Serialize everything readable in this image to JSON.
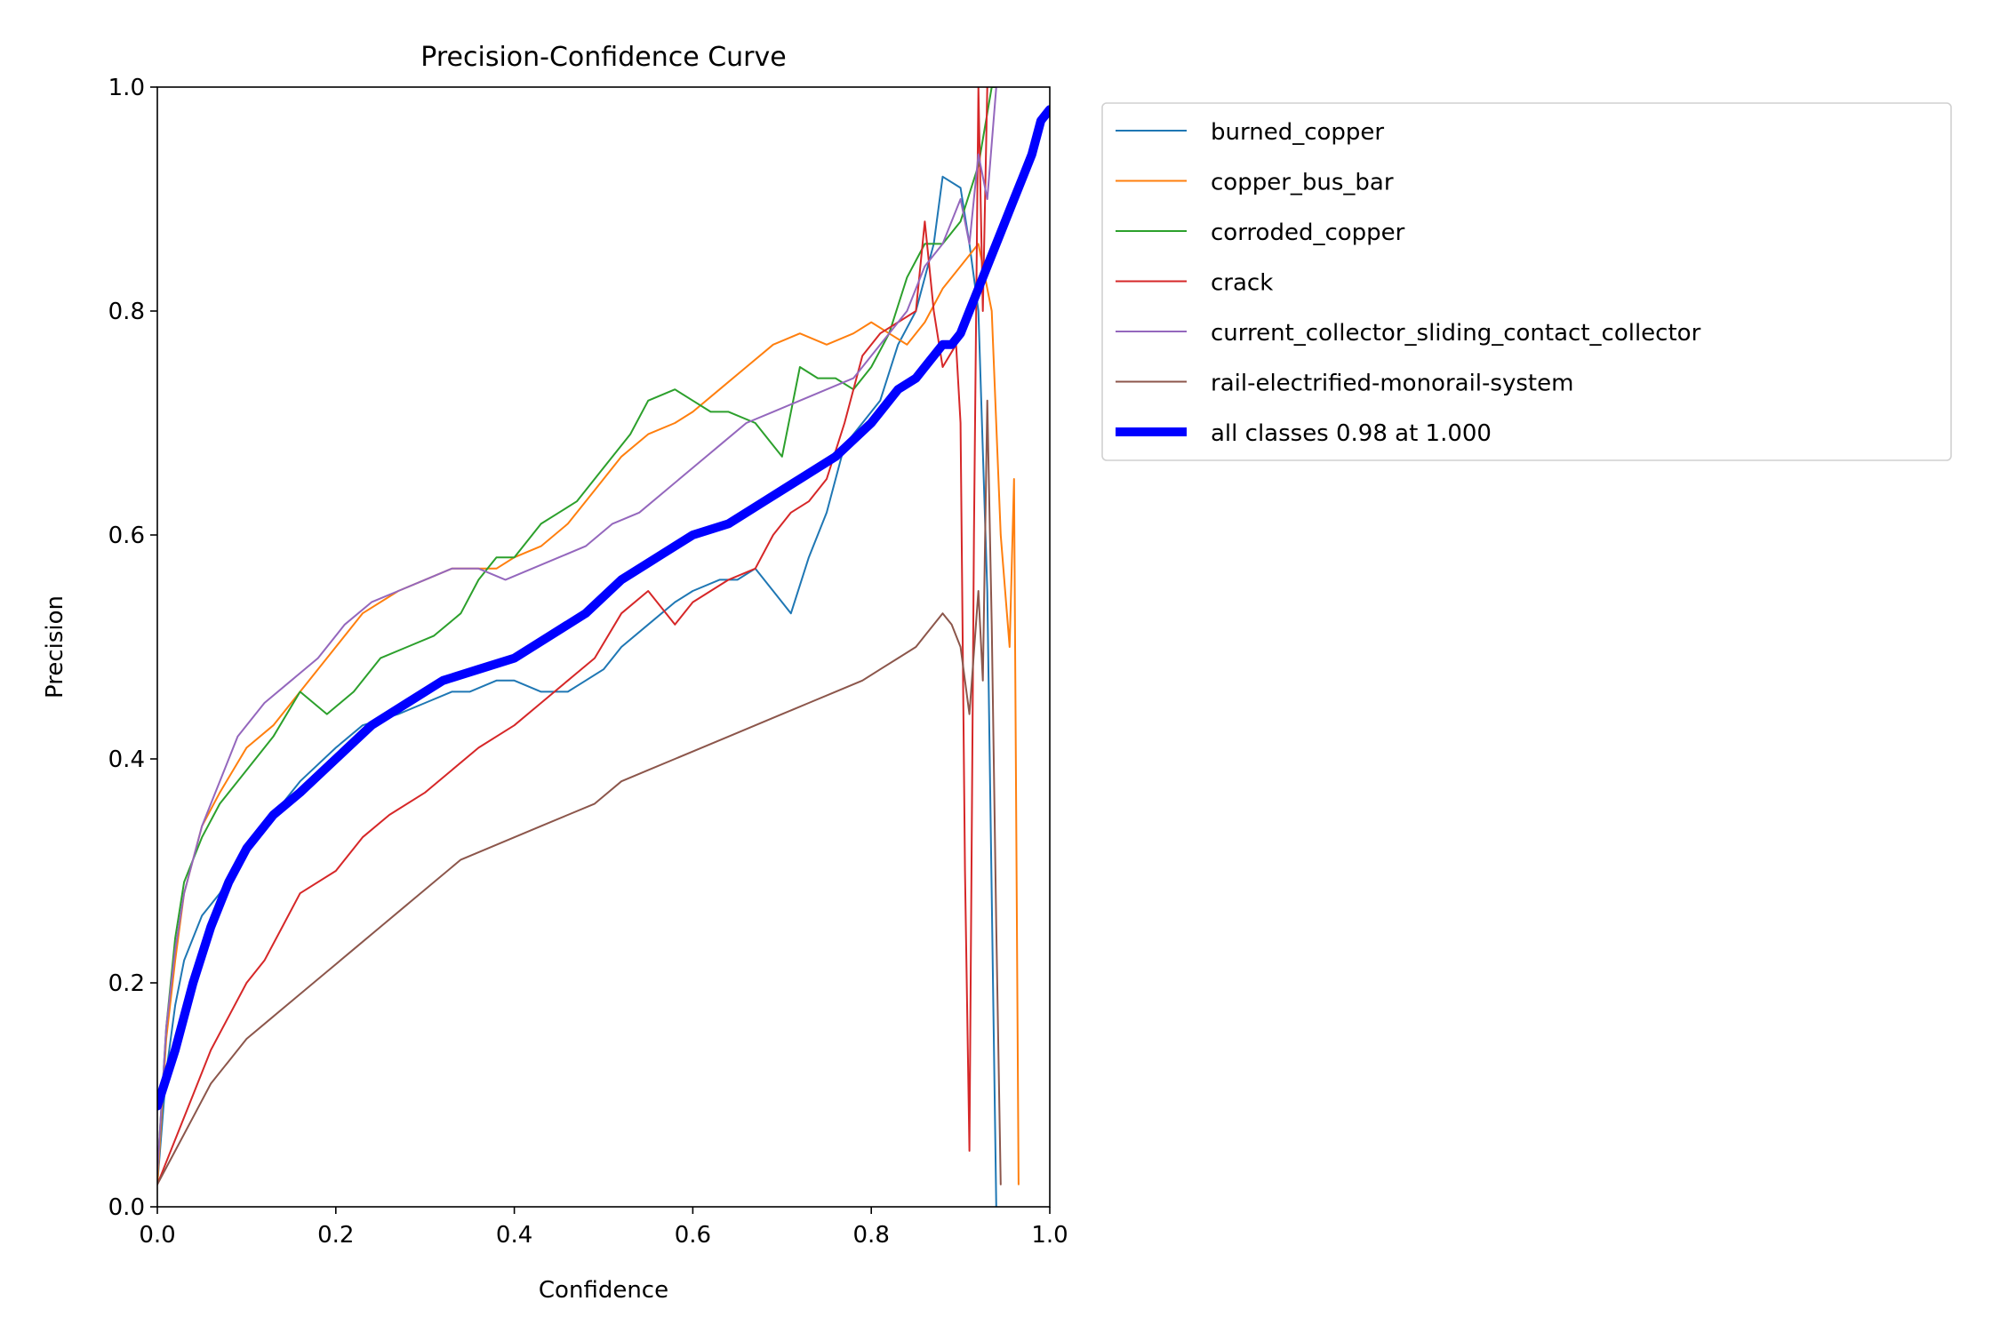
{
  "chart_data": {
    "type": "line",
    "title": "Precision-Confidence Curve",
    "xlabel": "Confidence",
    "ylabel": "Precision",
    "xlim": [
      0,
      1
    ],
    "ylim": [
      0,
      1
    ],
    "xticks": [
      "0.0",
      "0.2",
      "0.4",
      "0.6",
      "0.8",
      "1.0"
    ],
    "yticks": [
      "0.0",
      "0.2",
      "0.4",
      "0.6",
      "0.8",
      "1.0"
    ],
    "grid": false,
    "legend_position": "outside-right",
    "series": [
      {
        "name": "burned_copper",
        "color": "#1f77b4",
        "line_width": 1,
        "x": [
          0.0,
          0.01,
          0.02,
          0.03,
          0.05,
          0.07,
          0.1,
          0.13,
          0.16,
          0.2,
          0.23,
          0.27,
          0.3,
          0.33,
          0.35,
          0.38,
          0.4,
          0.43,
          0.46,
          0.48,
          0.5,
          0.52,
          0.55,
          0.58,
          0.6,
          0.63,
          0.65,
          0.67,
          0.69,
          0.71,
          0.73,
          0.75,
          0.77,
          0.79,
          0.81,
          0.83,
          0.85,
          0.87,
          0.88,
          0.9,
          0.91,
          0.92,
          0.93,
          0.94
        ],
        "y": [
          0.02,
          0.12,
          0.18,
          0.22,
          0.26,
          0.28,
          0.32,
          0.35,
          0.38,
          0.41,
          0.43,
          0.44,
          0.45,
          0.46,
          0.46,
          0.47,
          0.47,
          0.46,
          0.46,
          0.47,
          0.48,
          0.5,
          0.52,
          0.54,
          0.55,
          0.56,
          0.56,
          0.57,
          0.55,
          0.53,
          0.58,
          0.62,
          0.68,
          0.7,
          0.72,
          0.77,
          0.8,
          0.86,
          0.92,
          0.91,
          0.86,
          0.8,
          0.55,
          0.0
        ]
      },
      {
        "name": "copper_bus_bar",
        "color": "#ff7f0e",
        "line_width": 1,
        "x": [
          0.0,
          0.01,
          0.02,
          0.03,
          0.05,
          0.07,
          0.1,
          0.13,
          0.16,
          0.2,
          0.23,
          0.27,
          0.3,
          0.33,
          0.36,
          0.38,
          0.4,
          0.43,
          0.46,
          0.49,
          0.52,
          0.55,
          0.58,
          0.6,
          0.63,
          0.66,
          0.69,
          0.72,
          0.75,
          0.78,
          0.8,
          0.82,
          0.84,
          0.86,
          0.88,
          0.9,
          0.92,
          0.935,
          0.945,
          0.955,
          0.96,
          0.965
        ],
        "y": [
          0.02,
          0.15,
          0.22,
          0.28,
          0.34,
          0.37,
          0.41,
          0.43,
          0.46,
          0.5,
          0.53,
          0.55,
          0.56,
          0.57,
          0.57,
          0.57,
          0.58,
          0.59,
          0.61,
          0.64,
          0.67,
          0.69,
          0.7,
          0.71,
          0.73,
          0.75,
          0.77,
          0.78,
          0.77,
          0.78,
          0.79,
          0.78,
          0.77,
          0.79,
          0.82,
          0.84,
          0.86,
          0.8,
          0.6,
          0.5,
          0.65,
          0.02
        ]
      },
      {
        "name": "corroded_copper",
        "color": "#2ca02c",
        "line_width": 1,
        "x": [
          0.0,
          0.01,
          0.02,
          0.03,
          0.05,
          0.07,
          0.1,
          0.13,
          0.16,
          0.19,
          0.22,
          0.25,
          0.28,
          0.31,
          0.34,
          0.36,
          0.38,
          0.4,
          0.43,
          0.45,
          0.47,
          0.5,
          0.53,
          0.55,
          0.58,
          0.6,
          0.62,
          0.64,
          0.67,
          0.69,
          0.7,
          0.72,
          0.74,
          0.76,
          0.78,
          0.8,
          0.82,
          0.84,
          0.86,
          0.88,
          0.9,
          0.92,
          0.935,
          0.94
        ],
        "y": [
          0.03,
          0.16,
          0.24,
          0.29,
          0.33,
          0.36,
          0.39,
          0.42,
          0.46,
          0.44,
          0.46,
          0.49,
          0.5,
          0.51,
          0.53,
          0.56,
          0.58,
          0.58,
          0.61,
          0.62,
          0.63,
          0.66,
          0.69,
          0.72,
          0.73,
          0.72,
          0.71,
          0.71,
          0.7,
          0.68,
          0.67,
          0.75,
          0.74,
          0.74,
          0.73,
          0.75,
          0.78,
          0.83,
          0.86,
          0.86,
          0.88,
          0.93,
          1.0,
          1.0
        ]
      },
      {
        "name": "crack",
        "color": "#d62728",
        "line_width": 1,
        "x": [
          0.0,
          0.02,
          0.04,
          0.06,
          0.08,
          0.1,
          0.12,
          0.14,
          0.16,
          0.2,
          0.23,
          0.26,
          0.3,
          0.33,
          0.36,
          0.4,
          0.43,
          0.46,
          0.49,
          0.52,
          0.55,
          0.58,
          0.6,
          0.62,
          0.64,
          0.67,
          0.69,
          0.71,
          0.73,
          0.75,
          0.77,
          0.79,
          0.81,
          0.83,
          0.85,
          0.86,
          0.87,
          0.88,
          0.895,
          0.9,
          0.905,
          0.91,
          0.915,
          0.92,
          0.925,
          0.93
        ],
        "y": [
          0.02,
          0.06,
          0.1,
          0.14,
          0.17,
          0.2,
          0.22,
          0.25,
          0.28,
          0.3,
          0.33,
          0.35,
          0.37,
          0.39,
          0.41,
          0.43,
          0.45,
          0.47,
          0.49,
          0.53,
          0.55,
          0.52,
          0.54,
          0.55,
          0.56,
          0.57,
          0.6,
          0.62,
          0.63,
          0.65,
          0.7,
          0.76,
          0.78,
          0.79,
          0.8,
          0.88,
          0.8,
          0.75,
          0.77,
          0.7,
          0.3,
          0.05,
          0.6,
          1.0,
          0.8,
          1.0
        ]
      },
      {
        "name": "current_collector_sliding_contact_collector",
        "color": "#9467bd",
        "line_width": 1,
        "x": [
          0.0,
          0.01,
          0.02,
          0.03,
          0.05,
          0.07,
          0.09,
          0.12,
          0.15,
          0.18,
          0.21,
          0.24,
          0.27,
          0.3,
          0.33,
          0.36,
          0.39,
          0.42,
          0.45,
          0.48,
          0.51,
          0.54,
          0.57,
          0.6,
          0.63,
          0.66,
          0.69,
          0.72,
          0.75,
          0.78,
          0.8,
          0.82,
          0.84,
          0.86,
          0.88,
          0.9,
          0.91,
          0.92,
          0.93,
          0.94
        ],
        "y": [
          0.03,
          0.16,
          0.23,
          0.28,
          0.34,
          0.38,
          0.42,
          0.45,
          0.47,
          0.49,
          0.52,
          0.54,
          0.55,
          0.56,
          0.57,
          0.57,
          0.56,
          0.57,
          0.58,
          0.59,
          0.61,
          0.62,
          0.64,
          0.66,
          0.68,
          0.7,
          0.71,
          0.72,
          0.73,
          0.74,
          0.76,
          0.78,
          0.8,
          0.84,
          0.86,
          0.9,
          0.86,
          0.94,
          0.9,
          1.0
        ]
      },
      {
        "name": "rail-electrified-monorail-system",
        "color": "#8c564b",
        "line_width": 1,
        "x": [
          0.0,
          0.02,
          0.04,
          0.06,
          0.08,
          0.1,
          0.13,
          0.16,
          0.19,
          0.22,
          0.25,
          0.28,
          0.31,
          0.34,
          0.37,
          0.4,
          0.43,
          0.46,
          0.49,
          0.52,
          0.55,
          0.58,
          0.61,
          0.64,
          0.67,
          0.7,
          0.73,
          0.76,
          0.79,
          0.81,
          0.83,
          0.85,
          0.86,
          0.87,
          0.88,
          0.89,
          0.9,
          0.91,
          0.92,
          0.925,
          0.93,
          0.935,
          0.94,
          0.945
        ],
        "y": [
          0.02,
          0.05,
          0.08,
          0.11,
          0.13,
          0.15,
          0.17,
          0.19,
          0.21,
          0.23,
          0.25,
          0.27,
          0.29,
          0.31,
          0.32,
          0.33,
          0.34,
          0.35,
          0.36,
          0.38,
          0.39,
          0.4,
          0.41,
          0.42,
          0.43,
          0.44,
          0.45,
          0.46,
          0.47,
          0.48,
          0.49,
          0.5,
          0.51,
          0.52,
          0.53,
          0.52,
          0.5,
          0.44,
          0.55,
          0.47,
          0.72,
          0.52,
          0.25,
          0.02
        ]
      },
      {
        "name": "all classes 0.98 at 1.000",
        "color": "#0000ff",
        "line_width": 5,
        "x": [
          0.0,
          0.02,
          0.04,
          0.06,
          0.08,
          0.1,
          0.13,
          0.16,
          0.2,
          0.24,
          0.28,
          0.32,
          0.36,
          0.4,
          0.44,
          0.48,
          0.52,
          0.56,
          0.6,
          0.64,
          0.68,
          0.72,
          0.76,
          0.8,
          0.83,
          0.85,
          0.86,
          0.87,
          0.88,
          0.89,
          0.9,
          0.91,
          0.92,
          0.93,
          0.94,
          0.95,
          0.96,
          0.97,
          0.98,
          0.99,
          1.0
        ],
        "y": [
          0.09,
          0.14,
          0.2,
          0.25,
          0.29,
          0.32,
          0.35,
          0.37,
          0.4,
          0.43,
          0.45,
          0.47,
          0.48,
          0.49,
          0.51,
          0.53,
          0.56,
          0.58,
          0.6,
          0.61,
          0.63,
          0.65,
          0.67,
          0.7,
          0.73,
          0.74,
          0.75,
          0.76,
          0.77,
          0.77,
          0.78,
          0.8,
          0.82,
          0.84,
          0.86,
          0.88,
          0.9,
          0.92,
          0.94,
          0.97,
          0.98
        ]
      }
    ]
  }
}
